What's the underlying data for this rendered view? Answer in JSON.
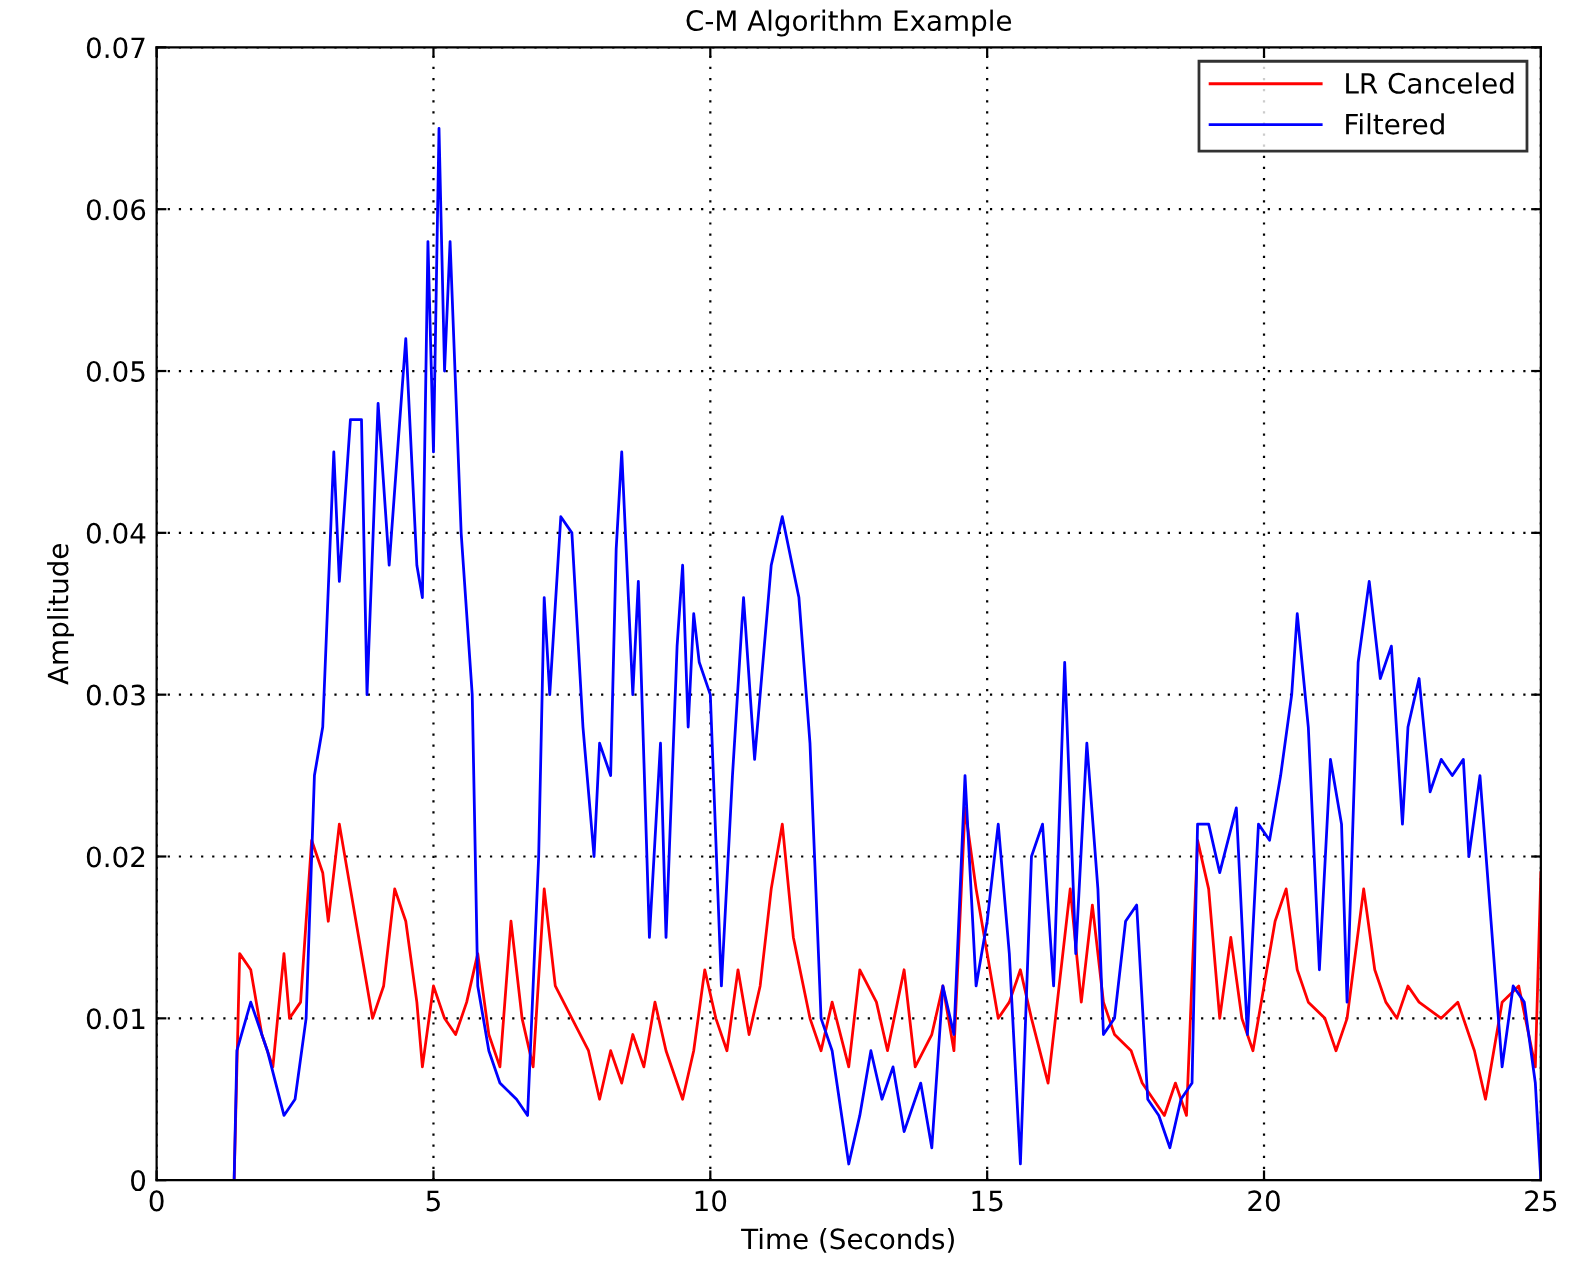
{
  "chart_data": {
    "type": "line",
    "title": "C-M Algorithm Example",
    "xlabel": "Time (Seconds)",
    "ylabel": "Amplitude",
    "xlim": [
      0,
      25
    ],
    "ylim": [
      0,
      0.07
    ],
    "xticks": [
      0,
      5,
      10,
      15,
      20,
      25
    ],
    "yticks": [
      0,
      0.01,
      0.02,
      0.03,
      0.04,
      0.05,
      0.06,
      0.07
    ],
    "grid": true,
    "legend": "top right",
    "line_style": "solid",
    "series": [
      {
        "name": "LR Canceled",
        "color": "#ff0000",
        "x": [
          1.4,
          1.5,
          1.7,
          1.9,
          2.1,
          2.3,
          2.4,
          2.6,
          2.8,
          3.0,
          3.1,
          3.3,
          3.5,
          3.7,
          3.9,
          4.1,
          4.3,
          4.5,
          4.7,
          4.8,
          5.0,
          5.2,
          5.4,
          5.6,
          5.8,
          6.0,
          6.2,
          6.4,
          6.6,
          6.8,
          7.0,
          7.2,
          7.5,
          7.8,
          8.0,
          8.2,
          8.4,
          8.6,
          8.8,
          9.0,
          9.2,
          9.5,
          9.7,
          9.9,
          10.1,
          10.3,
          10.5,
          10.7,
          10.9,
          11.1,
          11.3,
          11.5,
          11.8,
          12.0,
          12.2,
          12.5,
          12.7,
          13.0,
          13.2,
          13.5,
          13.7,
          14.0,
          14.2,
          14.4,
          14.6,
          14.8,
          15.0,
          15.2,
          15.4,
          15.6,
          15.8,
          16.1,
          16.3,
          16.5,
          16.7,
          16.9,
          17.1,
          17.3,
          17.6,
          17.8,
          18.0,
          18.2,
          18.4,
          18.6,
          18.8,
          19.0,
          19.2,
          19.4,
          19.6,
          19.8,
          20.0,
          20.2,
          20.4,
          20.6,
          20.8,
          21.1,
          21.3,
          21.5,
          21.8,
          22.0,
          22.2,
          22.4,
          22.6,
          22.8,
          23.2,
          23.5,
          23.8,
          24.0,
          24.3,
          24.6,
          24.9,
          25.0
        ],
        "values": [
          0.0,
          0.014,
          0.013,
          0.009,
          0.007,
          0.014,
          0.01,
          0.011,
          0.021,
          0.019,
          0.016,
          0.022,
          0.018,
          0.014,
          0.01,
          0.012,
          0.018,
          0.016,
          0.011,
          0.007,
          0.012,
          0.01,
          0.009,
          0.011,
          0.014,
          0.009,
          0.007,
          0.016,
          0.01,
          0.007,
          0.018,
          0.012,
          0.01,
          0.008,
          0.005,
          0.008,
          0.006,
          0.009,
          0.007,
          0.011,
          0.008,
          0.005,
          0.008,
          0.013,
          0.01,
          0.008,
          0.013,
          0.009,
          0.012,
          0.018,
          0.022,
          0.015,
          0.01,
          0.008,
          0.011,
          0.007,
          0.013,
          0.011,
          0.008,
          0.013,
          0.007,
          0.009,
          0.012,
          0.008,
          0.023,
          0.018,
          0.014,
          0.01,
          0.011,
          0.013,
          0.01,
          0.006,
          0.012,
          0.018,
          0.011,
          0.017,
          0.011,
          0.009,
          0.008,
          0.006,
          0.005,
          0.004,
          0.006,
          0.004,
          0.021,
          0.018,
          0.01,
          0.015,
          0.01,
          0.008,
          0.012,
          0.016,
          0.018,
          0.013,
          0.011,
          0.01,
          0.008,
          0.01,
          0.018,
          0.013,
          0.011,
          0.01,
          0.012,
          0.011,
          0.01,
          0.011,
          0.008,
          0.005,
          0.011,
          0.012,
          0.007,
          0.019
        ]
      },
      {
        "name": "Filtered",
        "color": "#0000ff",
        "x": [
          1.4,
          1.45,
          1.7,
          2.0,
          2.3,
          2.5,
          2.7,
          2.85,
          3.0,
          3.2,
          3.3,
          3.5,
          3.7,
          3.8,
          4.0,
          4.2,
          4.5,
          4.7,
          4.8,
          4.9,
          5.0,
          5.1,
          5.2,
          5.3,
          5.5,
          5.7,
          5.8,
          6.0,
          6.2,
          6.5,
          6.7,
          6.9,
          7.0,
          7.1,
          7.3,
          7.5,
          7.7,
          7.9,
          8.0,
          8.2,
          8.3,
          8.4,
          8.6,
          8.7,
          8.9,
          9.1,
          9.2,
          9.4,
          9.5,
          9.6,
          9.7,
          9.8,
          10.0,
          10.2,
          10.4,
          10.6,
          10.8,
          11.1,
          11.3,
          11.6,
          11.8,
          12.0,
          12.2,
          12.5,
          12.7,
          12.9,
          13.1,
          13.3,
          13.5,
          13.8,
          14.0,
          14.2,
          14.4,
          14.6,
          14.8,
          15.0,
          15.2,
          15.4,
          15.6,
          15.8,
          16.0,
          16.2,
          16.4,
          16.6,
          16.8,
          17.0,
          17.1,
          17.3,
          17.5,
          17.7,
          17.9,
          18.1,
          18.3,
          18.5,
          18.7,
          18.8,
          19.0,
          19.2,
          19.5,
          19.7,
          19.9,
          20.1,
          20.3,
          20.5,
          20.6,
          20.8,
          21.0,
          21.2,
          21.4,
          21.5,
          21.7,
          21.9,
          22.1,
          22.3,
          22.5,
          22.6,
          22.8,
          23.0,
          23.2,
          23.4,
          23.6,
          23.7,
          23.9,
          24.1,
          24.3,
          24.5,
          24.7,
          24.9,
          25.0
        ],
        "values": [
          0.0,
          0.008,
          0.011,
          0.008,
          0.004,
          0.005,
          0.01,
          0.025,
          0.028,
          0.045,
          0.037,
          0.047,
          0.047,
          0.03,
          0.048,
          0.038,
          0.052,
          0.038,
          0.036,
          0.058,
          0.045,
          0.065,
          0.05,
          0.058,
          0.04,
          0.03,
          0.012,
          0.008,
          0.006,
          0.005,
          0.004,
          0.02,
          0.036,
          0.03,
          0.041,
          0.04,
          0.028,
          0.02,
          0.027,
          0.025,
          0.039,
          0.045,
          0.03,
          0.037,
          0.015,
          0.027,
          0.015,
          0.033,
          0.038,
          0.028,
          0.035,
          0.032,
          0.03,
          0.012,
          0.025,
          0.036,
          0.026,
          0.038,
          0.041,
          0.036,
          0.027,
          0.01,
          0.008,
          0.001,
          0.004,
          0.008,
          0.005,
          0.007,
          0.003,
          0.006,
          0.002,
          0.012,
          0.009,
          0.025,
          0.012,
          0.016,
          0.022,
          0.014,
          0.001,
          0.02,
          0.022,
          0.012,
          0.032,
          0.014,
          0.027,
          0.018,
          0.009,
          0.01,
          0.016,
          0.017,
          0.005,
          0.004,
          0.002,
          0.005,
          0.006,
          0.022,
          0.022,
          0.019,
          0.023,
          0.009,
          0.022,
          0.021,
          0.025,
          0.03,
          0.035,
          0.028,
          0.013,
          0.026,
          0.022,
          0.011,
          0.032,
          0.037,
          0.031,
          0.033,
          0.022,
          0.028,
          0.031,
          0.024,
          0.026,
          0.025,
          0.026,
          0.02,
          0.025,
          0.016,
          0.007,
          0.012,
          0.011,
          0.006,
          0.0
        ]
      }
    ]
  }
}
